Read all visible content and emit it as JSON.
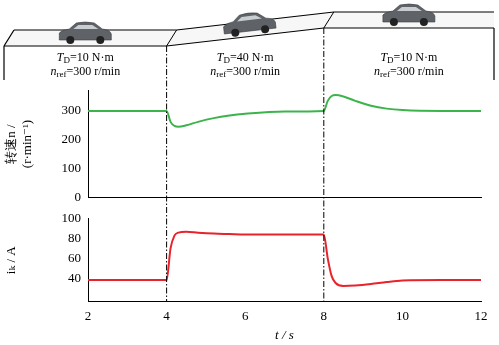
{
  "scene": {
    "segments": [
      {
        "torque": {
          "symbol": "T",
          "sub": "D",
          "text": "=10 N·m"
        },
        "reference": {
          "symbol": "n",
          "sub": "ref",
          "text": "=300 r/min"
        }
      },
      {
        "torque": {
          "symbol": "T",
          "sub": "D",
          "text": "=40 N·m"
        },
        "reference": {
          "symbol": "n",
          "sub": "ref",
          "text": "=300 r/min"
        }
      },
      {
        "torque": {
          "symbol": "T",
          "sub": "D",
          "text": "=10 N·m"
        },
        "reference": {
          "symbol": "n",
          "sub": "ref",
          "text": "=300 r/min"
        }
      }
    ],
    "events": [
      4,
      8
    ]
  },
  "chart_data": [
    {
      "type": "line",
      "y_label": [
        "转速n /",
        "(r·min⁻¹)"
      ],
      "x": [
        2,
        3,
        4,
        4.1,
        4.2,
        4.3,
        4.5,
        4.8,
        5.2,
        5.6,
        6,
        7,
        8,
        8.1,
        8.2,
        8.3,
        8.5,
        8.8,
        9.2,
        9.6,
        10,
        11,
        12
      ],
      "values": [
        300,
        300,
        300,
        262,
        248,
        245,
        250,
        262,
        275,
        284,
        290,
        298,
        300,
        335,
        352,
        355,
        350,
        335,
        318,
        308,
        303,
        300,
        300
      ],
      "color": "#3cb44b",
      "xlim": [
        2,
        12
      ],
      "xticks": [
        2,
        4,
        6,
        8,
        10,
        12
      ],
      "ylim": [
        0,
        370
      ],
      "yticks": [
        0,
        100,
        200,
        300
      ],
      "grid": false,
      "tick_labels": "y"
    },
    {
      "type": "line",
      "x_label": "t / s",
      "y_label": "iₖ / A",
      "x": [
        2,
        3,
        4,
        4.1,
        4.2,
        4.3,
        4.5,
        4.8,
        5.2,
        5.6,
        6,
        7,
        8,
        8.1,
        8.2,
        8.3,
        8.5,
        8.8,
        9.2,
        9.6,
        10,
        11,
        12
      ],
      "values": [
        38,
        38,
        38,
        70,
        83,
        86,
        87,
        86,
        85,
        84.5,
        84,
        84,
        84,
        60,
        42,
        35,
        32,
        32.5,
        34,
        36,
        37.5,
        38,
        38
      ],
      "color": "#e8232b",
      "xlim": [
        2,
        12
      ],
      "xticks": [
        2,
        4,
        6,
        8,
        10,
        12
      ],
      "ylim": [
        16,
        100
      ],
      "yticks": [
        40,
        60,
        80,
        100
      ],
      "grid": false
    }
  ]
}
